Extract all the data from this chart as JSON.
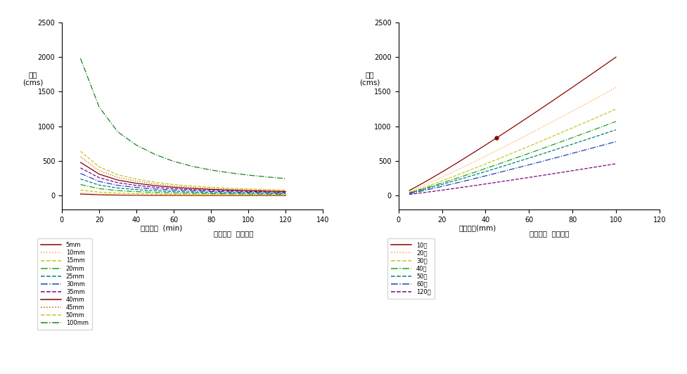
{
  "left_chart": {
    "ylabel": "유량\n(cms)",
    "xlim": [
      0,
      140
    ],
    "ylim": [
      -200,
      2500
    ],
    "xticks": [
      0,
      20,
      40,
      60,
      80,
      100,
      120,
      140
    ],
    "yticks": [
      0,
      500,
      1000,
      1500,
      2000,
      2500
    ],
    "x_vals": [
      10,
      20,
      30,
      40,
      50,
      60,
      70,
      80,
      90,
      100,
      110,
      120
    ],
    "series": [
      {
        "label": "5mm",
        "color": "#8B0000",
        "linestyle": "-",
        "values": [
          22,
          12,
          7,
          5,
          3.5,
          2.5,
          2,
          1.5,
          1.2,
          1.0,
          0.8,
          0.6
        ]
      },
      {
        "label": "10mm",
        "color": "#FFA040",
        "linestyle": ":",
        "values": [
          38,
          22,
          14,
          10,
          7.5,
          5.8,
          4.8,
          4.0,
          3.4,
          2.9,
          2.5,
          2.2
        ]
      },
      {
        "label": "15mm",
        "color": "#C8C800",
        "linestyle": "--",
        "values": [
          80,
          50,
          36,
          28,
          22,
          18,
          15,
          13,
          11,
          10,
          9,
          8
        ]
      },
      {
        "label": "20mm",
        "color": "#20A020",
        "linestyle": "-.",
        "values": [
          160,
          100,
          72,
          57,
          46,
          38,
          33,
          28,
          25,
          22,
          20,
          18
        ]
      },
      {
        "label": "25mm",
        "color": "#008080",
        "linestyle": "--",
        "values": [
          240,
          152,
          110,
          87,
          70,
          58,
          50,
          44,
          39,
          35,
          32,
          29
        ]
      },
      {
        "label": "30mm",
        "color": "#2040C0",
        "linestyle": "-.",
        "values": [
          320,
          205,
          148,
          117,
          95,
          79,
          68,
          59,
          53,
          48,
          43,
          39
        ]
      },
      {
        "label": "35mm",
        "color": "#8000A0",
        "linestyle": "--",
        "values": [
          400,
          258,
          186,
          147,
          120,
          99,
          85,
          74,
          66,
          60,
          54,
          49
        ]
      },
      {
        "label": "40mm",
        "color": "#800000",
        "linestyle": "-",
        "values": [
          480,
          310,
          224,
          177,
          144,
          120,
          102,
          90,
          80,
          72,
          65,
          59
        ]
      },
      {
        "label": "45mm",
        "color": "#C06000",
        "linestyle": ":",
        "values": [
          560,
          362,
          262,
          207,
          169,
          140,
          120,
          105,
          93,
          84,
          76,
          69
        ]
      },
      {
        "label": "50mm",
        "color": "#C8C820",
        "linestyle": "--",
        "values": [
          640,
          415,
          300,
          237,
          193,
          160,
          137,
          120,
          107,
          96,
          87,
          79
        ]
      },
      {
        "label": "100mm",
        "color": "#208020",
        "linestyle": "-.",
        "values": [
          1980,
          1280,
          920,
          728,
          594,
          494,
          422,
          369,
          329,
          296,
          269,
          246
        ]
      }
    ]
  },
  "right_chart": {
    "ylabel": "유량\n(cms)",
    "xlim": [
      0,
      120
    ],
    "ylim": [
      -200,
      2500
    ],
    "xticks": [
      0,
      20,
      40,
      60,
      80,
      100,
      120
    ],
    "yticks": [
      0,
      500,
      1000,
      1500,
      2000,
      2500
    ],
    "x_vals": [
      5,
      10,
      15,
      20,
      25,
      30,
      35,
      40,
      45,
      50,
      60,
      70,
      80,
      90,
      100
    ],
    "marker_x": 45,
    "series": [
      {
        "label": "10분",
        "color": "#8B0000",
        "linestyle": "-",
        "y_at_100": 2000
      },
      {
        "label": "20분",
        "color": "#FFA040",
        "linestyle": ":",
        "y_at_100": 1560
      },
      {
        "label": "30분",
        "color": "#C8C820",
        "linestyle": "--",
        "y_at_100": 1250
      },
      {
        "label": "40분",
        "color": "#20A020",
        "linestyle": "-.",
        "y_at_100": 1070
      },
      {
        "label": "50분",
        "color": "#008080",
        "linestyle": "--",
        "y_at_100": 950
      },
      {
        "label": "60분",
        "color": "#2040C0",
        "linestyle": "-.",
        "y_at_100": 780
      },
      {
        "label": "120분",
        "color": "#800080",
        "linestyle": "--",
        "y_at_100": 460
      }
    ]
  },
  "legend_left_xlabel1": "지속시간  (min)",
  "legend_left_xlabel2": "유효강우  지속시간",
  "legend_right_xlabel1": "유효강우(mm)",
  "legend_right_xlabel2": "유효강우  대실유량"
}
